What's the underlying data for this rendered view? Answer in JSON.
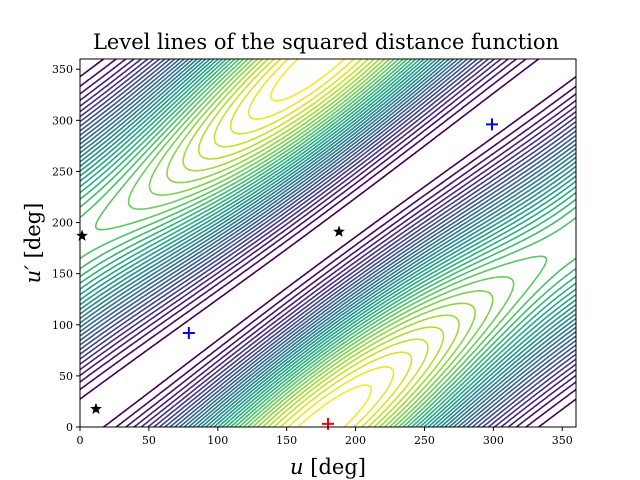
{
  "chart_data": {
    "type": "contour",
    "title": "Level lines of the squared distance function",
    "xlabel_var": "u",
    "xlabel_unit": " [deg]",
    "ylabel_var": "u′",
    "ylabel_unit": " [deg]",
    "xlim": [
      0,
      360
    ],
    "ylim": [
      0,
      360
    ],
    "xticks": [
      "0",
      "50",
      "100",
      "150",
      "200",
      "250",
      "300",
      "350"
    ],
    "yticks": [
      "0",
      "50",
      "100",
      "150",
      "200",
      "250",
      "300",
      "350"
    ],
    "grid": false,
    "colormap": "viridis",
    "contour_levels": 36,
    "markers": [
      {
        "kind": "plus",
        "color": "#0000ff",
        "u": 79,
        "v": 92
      },
      {
        "kind": "plus",
        "color": "#0000ff",
        "u": 299,
        "v": 296
      },
      {
        "kind": "plus",
        "color": "#ff0000",
        "u": 180,
        "v": 3
      },
      {
        "kind": "star",
        "color": "#000000",
        "u": 1.5,
        "v": 187
      },
      {
        "kind": "star",
        "color": "#000000",
        "u": 11.6,
        "v": 17.6
      },
      {
        "kind": "star",
        "color": "#000000",
        "u": 188,
        "v": 191
      }
    ]
  }
}
